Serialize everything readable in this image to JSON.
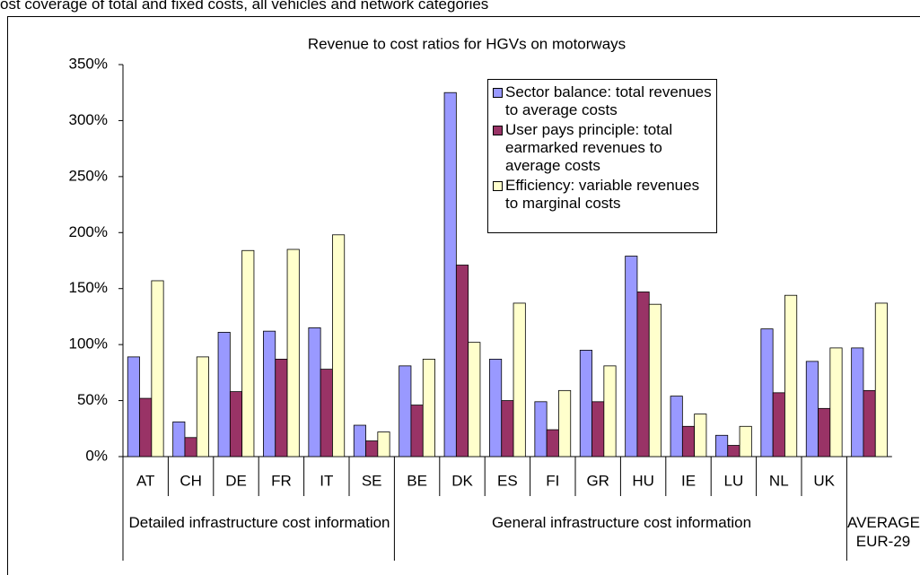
{
  "caption": "ost coverage of total and fixed costs, all vehicles and network categories",
  "chart_data": {
    "type": "bar",
    "title": "Revenue to cost ratios for HGVs on motorways",
    "categories": [
      "AT",
      "CH",
      "DE",
      "FR",
      "IT",
      "SE",
      "BE",
      "DK",
      "ES",
      "FI",
      "GR",
      "HU",
      "IE",
      "LU",
      "NL",
      "UK",
      null
    ],
    "groups": [
      "Detailed infrastructure cost information",
      "General infrastructure cost information",
      "AVERAGE EUR-29"
    ],
    "series": [
      {
        "name": "Sector balance: total revenues to average costs",
        "color": "#9999ff",
        "values": [
          89,
          31,
          111,
          112,
          115,
          28,
          81,
          325,
          87,
          49,
          95,
          179,
          54,
          19,
          114,
          85,
          97
        ]
      },
      {
        "name": "User pays principle: total earmarked revenues to average costs",
        "color": "#993366",
        "values": [
          52,
          17,
          58,
          87,
          78,
          14,
          46,
          171,
          50,
          24,
          49,
          147,
          27,
          10,
          57,
          43,
          59
        ]
      },
      {
        "name": "Efficiency: variable revenues to marginal costs",
        "color": "#ffffcc",
        "values": [
          157,
          89,
          184,
          185,
          198,
          22,
          87,
          102,
          137,
          59,
          81,
          136,
          38,
          27,
          144,
          97,
          137
        ]
      }
    ],
    "ylim": [
      0,
      350
    ],
    "yticks": [
      {
        "value": 0,
        "label": "0%"
      },
      {
        "value": 50,
        "label": "50%"
      },
      {
        "value": 100,
        "label": "100%"
      },
      {
        "value": 150,
        "label": "150%"
      },
      {
        "value": 200,
        "label": "200%"
      },
      {
        "value": 250,
        "label": "250%"
      },
      {
        "value": 300,
        "label": "300%"
      },
      {
        "value": 350,
        "label": "350%"
      }
    ],
    "grid": false,
    "legend": "upper-right"
  }
}
